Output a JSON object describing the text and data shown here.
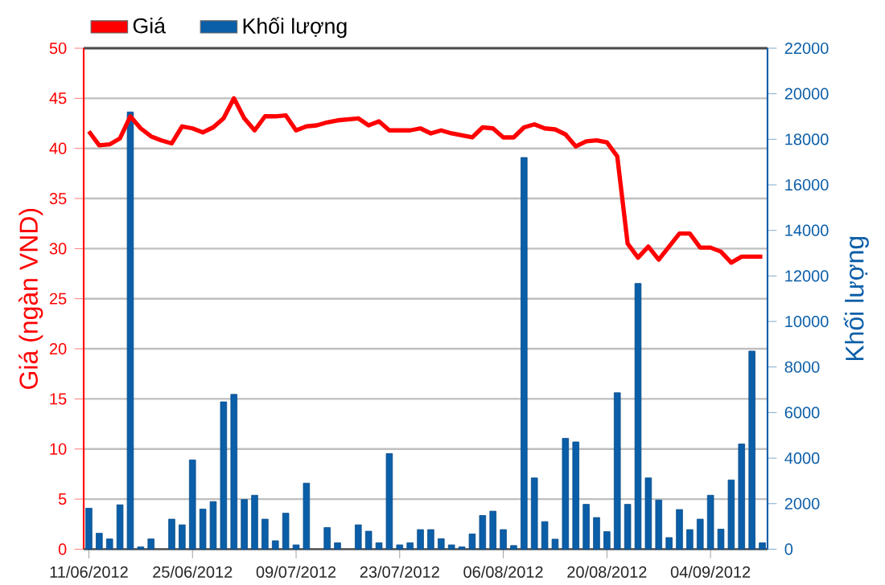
{
  "chart_data": {
    "type": "line",
    "categories": [
      "11/06/2012",
      null,
      null,
      null,
      null,
      null,
      null,
      null,
      null,
      null,
      "25/06/2012",
      null,
      null,
      null,
      null,
      null,
      null,
      null,
      null,
      null,
      "09/07/2012",
      null,
      null,
      null,
      null,
      null,
      null,
      null,
      null,
      null,
      "23/07/2012",
      null,
      null,
      null,
      null,
      null,
      null,
      null,
      null,
      null,
      "06/08/2012",
      null,
      null,
      null,
      null,
      null,
      null,
      null,
      null,
      null,
      "20/08/2012",
      null,
      null,
      null,
      null,
      null,
      null,
      null,
      null,
      null,
      "04/09/2012",
      null,
      null,
      null,
      null,
      null
    ],
    "series": [
      {
        "name": "Giá",
        "color": "#ff0000",
        "values": [
          41.7,
          40.3,
          40.4,
          41.0,
          43.2,
          42.0,
          41.2,
          40.8,
          40.5,
          42.2,
          42.0,
          41.6,
          42.1,
          43.0,
          45.0,
          43.0,
          41.8,
          43.2,
          43.2,
          43.3,
          41.8,
          42.2,
          42.3,
          42.6,
          42.8,
          42.9,
          43.0,
          42.3,
          42.7,
          41.8,
          41.8,
          41.8,
          42.0,
          41.5,
          41.8,
          41.5,
          41.3,
          41.1,
          42.1,
          42.0,
          41.1,
          41.1,
          42.1,
          42.4,
          42.0,
          41.9,
          41.4,
          40.2,
          40.7,
          40.8,
          40.6,
          39.2,
          30.5,
          29.1,
          30.2,
          28.9,
          30.2,
          31.5,
          31.5,
          30.1,
          30.1,
          29.7,
          28.6,
          29.2,
          29.2,
          29.2
        ]
      },
      {
        "name": "Khối lượng",
        "type": "bar",
        "axis": "y2",
        "color": "#0b5ea8",
        "values": [
          1800,
          700,
          450,
          1950,
          19200,
          100,
          450,
          null,
          1320,
          1070,
          3920,
          1760,
          2090,
          6470,
          6800,
          2180,
          2370,
          1320,
          370,
          1580,
          190,
          2900,
          null,
          950,
          280,
          null,
          1070,
          790,
          280,
          4200,
          190,
          280,
          860,
          860,
          460,
          190,
          100,
          670,
          1480,
          1670,
          860,
          160,
          17200,
          3130,
          1210,
          440,
          4870,
          4710,
          1970,
          1390,
          770,
          6870,
          1970,
          11670,
          3130,
          2160,
          510,
          1740,
          860,
          1320,
          2370,
          880,
          3040,
          4620,
          8700,
          280
        ]
      }
    ],
    "ylabel": "Giá (ngàn VND)",
    "y2label": "Khối lượng",
    "ylim": [
      0,
      50
    ],
    "yticks": [
      0,
      5,
      10,
      15,
      20,
      25,
      30,
      35,
      40,
      45,
      50
    ],
    "y2lim": [
      0,
      22000
    ],
    "y2ticks": [
      0,
      2000,
      4000,
      6000,
      8000,
      10000,
      12000,
      14000,
      16000,
      18000,
      20000,
      22000
    ],
    "grid": "y",
    "legend": "top left",
    "marker": "none",
    "line_style": "solid"
  }
}
